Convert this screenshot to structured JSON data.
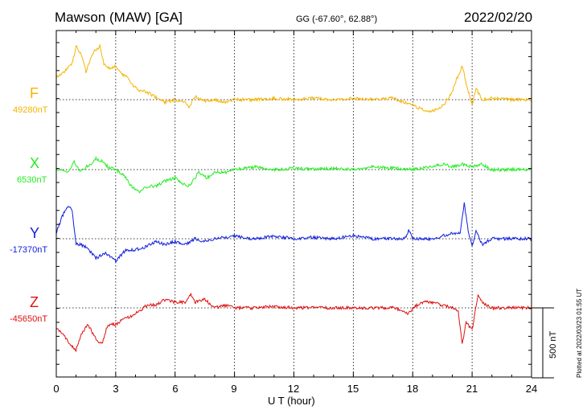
{
  "header": {
    "station": "Mawson (MAW)  [GA]",
    "coords": "GG (-67.60°,  62.88°)",
    "date": "2022/02/20"
  },
  "scale_label": "500 nT",
  "plotted_at": "Plotted at 2022/03/23 01:55 UT",
  "chart_data": {
    "type": "line",
    "xlabel": "U T (hour)",
    "xlim": [
      0,
      24
    ],
    "x_ticks": [
      "0",
      "3",
      "6",
      "9",
      "12",
      "15",
      "18",
      "21",
      "24"
    ],
    "grid": true,
    "scale_bar_nT": 500,
    "series": [
      {
        "name": "F",
        "baseline": "49280nT",
        "color": "#f5b400",
        "x": [
          0,
          0.4,
          0.8,
          1.0,
          1.3,
          1.5,
          1.8,
          2.0,
          2.2,
          2.4,
          2.7,
          3.0,
          3.3,
          3.6,
          3.9,
          4.2,
          4.5,
          5.0,
          5.5,
          6.0,
          6.5,
          6.7,
          7.0,
          7.5,
          8.0,
          8.5,
          9.0,
          10,
          11,
          12,
          13,
          14,
          15,
          16,
          17,
          18,
          18.8,
          19.2,
          19.6,
          20,
          20.2,
          20.5,
          20.7,
          21.0,
          21.2,
          21.5,
          22,
          23,
          24
        ],
        "y": [
          160,
          200,
          260,
          380,
          310,
          200,
          320,
          360,
          380,
          260,
          220,
          240,
          180,
          160,
          100,
          60,
          60,
          20,
          -20,
          0,
          -20,
          -60,
          20,
          -10,
          0,
          -20,
          0,
          0,
          10,
          0,
          10,
          0,
          10,
          0,
          10,
          -40,
          -90,
          -70,
          -30,
          60,
          140,
          240,
          120,
          -40,
          80,
          0,
          10,
          0,
          0
        ]
      },
      {
        "name": "X",
        "baseline": "6530nT",
        "color": "#22ee22",
        "x": [
          0,
          0.3,
          0.6,
          0.9,
          1.2,
          1.5,
          1.8,
          2.0,
          2.3,
          2.6,
          3.0,
          3.4,
          3.8,
          4.2,
          4.6,
          5.0,
          5.5,
          6.0,
          6.6,
          6.8,
          7.2,
          7.6,
          8.0,
          8.5,
          9.0,
          10,
          11,
          12,
          13,
          14,
          15,
          16,
          17,
          18,
          19,
          19.5,
          20,
          20.5,
          21.0,
          21.5,
          22,
          23,
          24
        ],
        "y": [
          0,
          0,
          -20,
          60,
          -20,
          20,
          40,
          80,
          60,
          20,
          0,
          -40,
          -120,
          -160,
          -120,
          -120,
          -80,
          -60,
          -120,
          -100,
          -20,
          -60,
          -20,
          -20,
          0,
          20,
          0,
          10,
          0,
          10,
          0,
          20,
          10,
          0,
          20,
          40,
          20,
          40,
          20,
          40,
          0,
          0,
          0
        ]
      },
      {
        "name": "Y",
        "baseline": "-17370nT",
        "color": "#1020e0",
        "x": [
          0,
          0.3,
          0.6,
          0.8,
          1.0,
          1.2,
          1.5,
          2.0,
          2.5,
          3.0,
          3.5,
          4.0,
          4.5,
          5.0,
          5.5,
          6.0,
          6.5,
          7.0,
          7.5,
          8.0,
          9.0,
          10,
          11,
          12,
          13,
          14,
          15,
          16,
          17,
          17.6,
          17.8,
          18,
          19,
          19.5,
          20,
          20.4,
          20.6,
          20.8,
          21.0,
          21.2,
          21.5,
          22,
          23,
          24
        ],
        "y": [
          40,
          160,
          240,
          200,
          -40,
          -40,
          -60,
          -140,
          -100,
          -160,
          -80,
          -80,
          -60,
          -20,
          -40,
          -20,
          -40,
          0,
          -20,
          0,
          20,
          0,
          20,
          0,
          10,
          0,
          20,
          0,
          0,
          0,
          60,
          0,
          0,
          20,
          40,
          40,
          260,
          60,
          -60,
          60,
          -40,
          0,
          0,
          0
        ]
      },
      {
        "name": "Z",
        "baseline": "-45650nT",
        "color": "#e01010",
        "x": [
          0,
          0.4,
          0.8,
          1.0,
          1.3,
          1.6,
          2.0,
          2.3,
          2.6,
          3.0,
          3.4,
          3.8,
          4.2,
          4.6,
          5.0,
          5.5,
          6.0,
          6.5,
          6.8,
          7.0,
          7.5,
          8.0,
          8.5,
          9.0,
          10,
          11,
          12,
          13,
          14,
          15,
          16,
          17,
          17.5,
          17.8,
          18.2,
          18.6,
          19,
          19.5,
          20,
          20.3,
          20.5,
          20.7,
          21.0,
          21.3,
          21.5,
          22,
          23,
          24
        ],
        "y": [
          -140,
          -200,
          -280,
          -300,
          -180,
          -120,
          -220,
          -260,
          -120,
          -120,
          -80,
          -60,
          -20,
          20,
          20,
          60,
          40,
          40,
          100,
          40,
          60,
          0,
          20,
          0,
          0,
          10,
          0,
          0,
          0,
          0,
          0,
          0,
          -20,
          -40,
          20,
          40,
          40,
          20,
          0,
          -20,
          -260,
          -100,
          -160,
          100,
          40,
          0,
          0,
          0
        ]
      }
    ]
  }
}
